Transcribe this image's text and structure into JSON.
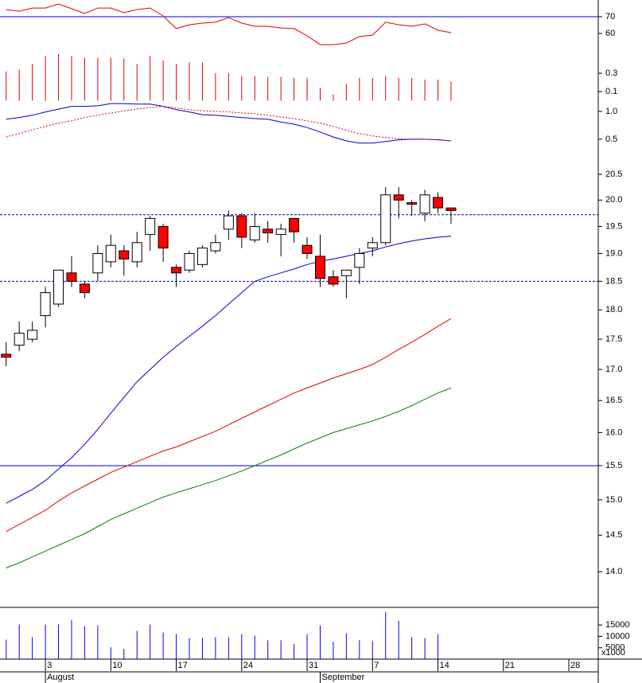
{
  "chart_data": {
    "type": "candlestick",
    "x": [
      -3,
      -2,
      -1,
      0,
      1,
      2,
      3,
      4,
      5,
      6,
      7,
      8,
      9,
      10,
      11,
      12,
      13,
      14,
      15,
      16,
      17,
      18,
      19,
      20,
      21,
      22,
      23,
      24,
      25,
      26,
      27,
      28,
      29,
      30,
      31
    ],
    "xlim": [
      -3.47,
      42.25
    ],
    "xticks": [
      {
        "value": 0,
        "label": "3"
      },
      {
        "value": 5,
        "label": "10"
      },
      {
        "value": 10,
        "label": "17"
      },
      {
        "value": 15,
        "label": "24"
      },
      {
        "value": 20,
        "label": "31"
      },
      {
        "value": 25,
        "label": "7"
      },
      {
        "value": 30,
        "label": "14"
      },
      {
        "value": 35,
        "label": "21"
      },
      {
        "value": 40,
        "label": "28"
      }
    ],
    "month_labels": [
      {
        "value": 0,
        "label": "August"
      },
      {
        "value": 21,
        "label": "September"
      }
    ],
    "open": [
      17.25,
      17.4,
      17.5,
      17.9,
      18.1,
      18.65,
      18.45,
      18.65,
      18.85,
      19.05,
      18.85,
      19.35,
      19.5,
      18.75,
      18.7,
      18.8,
      19.05,
      19.45,
      19.7,
      19.25,
      19.45,
      19.35,
      19.65,
      19.15,
      18.95,
      18.58,
      18.6,
      18.75,
      19.1,
      19.2,
      20.1,
      19.95,
      19.75,
      20.05,
      19.85
    ],
    "high": [
      17.45,
      17.8,
      17.8,
      18.4,
      18.7,
      18.95,
      18.5,
      19.15,
      19.35,
      19.15,
      19.4,
      19.7,
      19.55,
      18.8,
      19.05,
      19.15,
      19.35,
      19.8,
      19.75,
      19.75,
      19.6,
      19.55,
      19.65,
      19.3,
      19.35,
      18.7,
      18.7,
      19.1,
      19.3,
      20.25,
      20.25,
      20.0,
      20.2,
      20.15,
      19.85
    ],
    "low": [
      17.05,
      17.3,
      17.45,
      17.7,
      18.05,
      18.4,
      18.2,
      18.5,
      18.75,
      18.6,
      18.75,
      19.05,
      18.85,
      18.4,
      18.65,
      18.75,
      19.0,
      19.25,
      19.1,
      19.2,
      19.2,
      18.95,
      19.2,
      18.9,
      18.4,
      18.4,
      18.2,
      18.45,
      18.95,
      19.15,
      19.65,
      19.7,
      19.6,
      19.75,
      19.55
    ],
    "close": [
      17.2,
      17.6,
      17.65,
      18.3,
      18.7,
      18.5,
      18.3,
      19.0,
      19.15,
      18.9,
      19.2,
      19.65,
      19.1,
      18.65,
      19.0,
      19.1,
      19.2,
      19.7,
      19.3,
      19.5,
      19.38,
      19.45,
      19.4,
      19.0,
      18.55,
      18.45,
      18.7,
      19.0,
      19.2,
      20.1,
      20.0,
      19.92,
      20.1,
      19.85,
      19.8
    ],
    "up_color": "#ffffff",
    "down_color": "#ff0000",
    "log_scale": true,
    "ylim": [
      13.56,
      20.8
    ],
    "yticks": [
      20.5,
      {
        "value": 20,
        "label": "20.0"
      },
      19.5,
      {
        "value": 19,
        "label": "19.0"
      },
      18.5,
      {
        "value": 18,
        "label": "18.0"
      },
      17.5,
      {
        "value": 17,
        "label": "17.0"
      },
      16.5,
      {
        "value": 16,
        "label": "16.0"
      },
      15.5,
      {
        "value": 15,
        "label": "15.0"
      },
      14.5,
      {
        "value": 14,
        "label": "14.0"
      }
    ],
    "hlines": [
      {
        "value": 19.72,
        "color": "#0000cc",
        "dashed": true
      },
      {
        "value": 18.5,
        "color": "#0000cc",
        "dashed": true
      },
      {
        "value": 15.5,
        "color": "#0000cc",
        "dashed": false
      }
    ],
    "series": [
      {
        "color": "#0000cc",
        "values": [
          14.95,
          15.05,
          15.15,
          15.28,
          15.45,
          15.62,
          15.82,
          16.05,
          16.3,
          16.55,
          16.8,
          17.0,
          17.2,
          17.38,
          17.55,
          17.72,
          17.9,
          18.1,
          18.3,
          18.5,
          18.58,
          18.65,
          18.72,
          18.8,
          18.86,
          18.9,
          18.95,
          19.0,
          19.05,
          19.12,
          19.18,
          19.23,
          19.27,
          19.3,
          19.32
        ]
      },
      {
        "color": "#e00000",
        "values": [
          14.55,
          14.65,
          14.75,
          14.85,
          14.98,
          15.1,
          15.2,
          15.3,
          15.4,
          15.48,
          15.56,
          15.64,
          15.72,
          15.78,
          15.86,
          15.94,
          16.02,
          16.12,
          16.22,
          16.32,
          16.42,
          16.52,
          16.62,
          16.7,
          16.78,
          16.86,
          16.93,
          17.0,
          17.08,
          17.2,
          17.33,
          17.45,
          17.58,
          17.72,
          17.85
        ]
      },
      {
        "color": "#008000",
        "values": [
          14.05,
          14.12,
          14.2,
          14.28,
          14.36,
          14.44,
          14.52,
          14.62,
          14.72,
          14.8,
          14.88,
          14.96,
          15.04,
          15.1,
          15.16,
          15.22,
          15.28,
          15.35,
          15.42,
          15.5,
          15.58,
          15.66,
          15.75,
          15.84,
          15.92,
          16.0,
          16.06,
          16.12,
          16.18,
          16.25,
          16.33,
          16.42,
          16.52,
          16.62,
          16.7
        ]
      }
    ],
    "indicators": [
      {
        "type": "line",
        "ylim": [
          51.43,
          80
        ],
        "yticks": [
          70,
          60
        ],
        "hlines": [
          {
            "value": 70,
            "color": "#0000cc",
            "dashed": false
          }
        ],
        "series": [
          {
            "color": "#e00000",
            "values": [
              74.3,
              73.3,
              75.2,
              75.2,
              77.6,
              74.8,
              71.9,
              75.2,
              75.2,
              72.4,
              74.3,
              75.2,
              70.5,
              62.9,
              65.2,
              66.2,
              66.7,
              69.5,
              66.2,
              64.3,
              64.3,
              63.3,
              62.9,
              58.6,
              53.3,
              53.3,
              54.3,
              58.1,
              59.0,
              66.7,
              65.2,
              64.3,
              65.7,
              61.9,
              60.5
            ]
          }
        ]
      },
      {
        "type": "bar",
        "ylim": [
          -0.013,
          0.561
        ],
        "yticks": [
          0.3,
          0.1
        ],
        "color": "#e00000",
        "values": [
          0.32,
          0.34,
          0.4,
          0.49,
          0.51,
          0.49,
          0.47,
          0.47,
          0.47,
          0.46,
          0.4,
          0.49,
          0.44,
          0.4,
          0.42,
          0.42,
          0.3,
          0.3,
          0.27,
          0.27,
          0.26,
          0.26,
          0.25,
          0.25,
          0.14,
          0.07,
          0.18,
          0.25,
          0.25,
          0.27,
          0.25,
          0.25,
          0.23,
          0.23,
          0.21
        ]
      },
      {
        "type": "line",
        "ylim": [
          0.07,
          1.17
        ],
        "yticks": [
          {
            "value": 1,
            "label": "1.0"
          },
          0.5
        ],
        "series": [
          {
            "color": "#0000cc",
            "values": [
              0.86,
              0.89,
              0.93,
              0.99,
              1.04,
              1.09,
              1.09,
              1.1,
              1.14,
              1.14,
              1.13,
              1.13,
              1.09,
              1.03,
              0.99,
              0.94,
              0.93,
              0.91,
              0.89,
              0.87,
              0.86,
              0.81,
              0.77,
              0.71,
              0.63,
              0.54,
              0.47,
              0.43,
              0.43,
              0.46,
              0.49,
              0.5,
              0.5,
              0.49,
              0.47
            ]
          },
          {
            "color": "#e00000",
            "dashed": true,
            "values": [
              0.54,
              0.6,
              0.67,
              0.73,
              0.79,
              0.83,
              0.89,
              0.93,
              0.97,
              1.01,
              1.04,
              1.07,
              1.09,
              1.06,
              1.03,
              1.01,
              1.0,
              0.99,
              0.97,
              0.96,
              0.93,
              0.9,
              0.87,
              0.83,
              0.79,
              0.73,
              0.66,
              0.6,
              0.56,
              0.53,
              0.51,
              0.5,
              0.5,
              0.49,
              0.47
            ]
          }
        ]
      },
      {
        "type": "bar",
        "ylim": [
          0,
          21700
        ],
        "yticks": [
          15000,
          10000,
          5000
        ],
        "y_label": "x1000",
        "color": "#0000ff",
        "values": [
          8600,
          15200,
          9700,
          15200,
          15200,
          17200,
          14500,
          14800,
          5200,
          4500,
          12400,
          15200,
          11700,
          11000,
          9300,
          9300,
          9700,
          9700,
          11000,
          10300,
          8300,
          8300,
          6600,
          11000,
          14800,
          7600,
          11400,
          8300,
          7900,
          20700,
          16900,
          9700,
          9300,
          11000,
          null
        ]
      }
    ]
  }
}
